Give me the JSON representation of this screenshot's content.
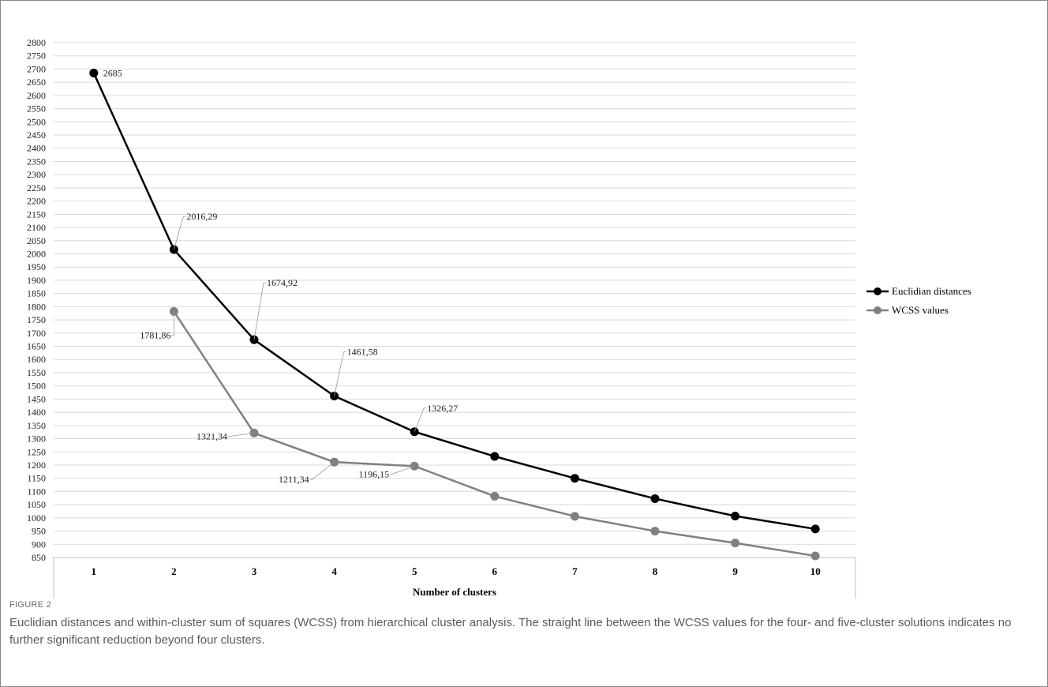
{
  "chart_data": {
    "type": "line",
    "x": [
      1,
      2,
      3,
      4,
      5,
      6,
      7,
      8,
      9,
      10
    ],
    "xlabel": "Number of clusters",
    "ylabel": "",
    "ylim": [
      850,
      2800
    ],
    "ytick_step": 50,
    "grid": true,
    "legend_position": "right",
    "series": [
      {
        "name": "Euclidian distances",
        "color": "#000000",
        "values": [
          2685,
          2016.29,
          1674.92,
          1461.58,
          1326.27,
          1233,
          1150,
          1073,
          1007,
          958
        ],
        "labels": [
          "2685",
          "2016,29",
          "1674,92",
          "1461,58",
          "1326,27",
          "",
          "",
          "",
          "",
          ""
        ]
      },
      {
        "name": "WCSS values",
        "color": "#808080",
        "values": [
          null,
          1781.86,
          1321.34,
          1211.34,
          1196.15,
          1082,
          1006,
          950,
          905,
          856
        ],
        "labels": [
          "",
          "1781,86",
          "1321,34",
          "1211,34",
          "1196,15",
          "",
          "",
          "",
          "",
          ""
        ]
      }
    ]
  },
  "caption": {
    "label": "FIGURE 2",
    "text": "Euclidian distances and within-cluster sum of squares (WCSS) from hierarchical cluster analysis. The straight line between the WCSS values for the four- and five-cluster solutions indicates no further significant reduction beyond four clusters."
  }
}
